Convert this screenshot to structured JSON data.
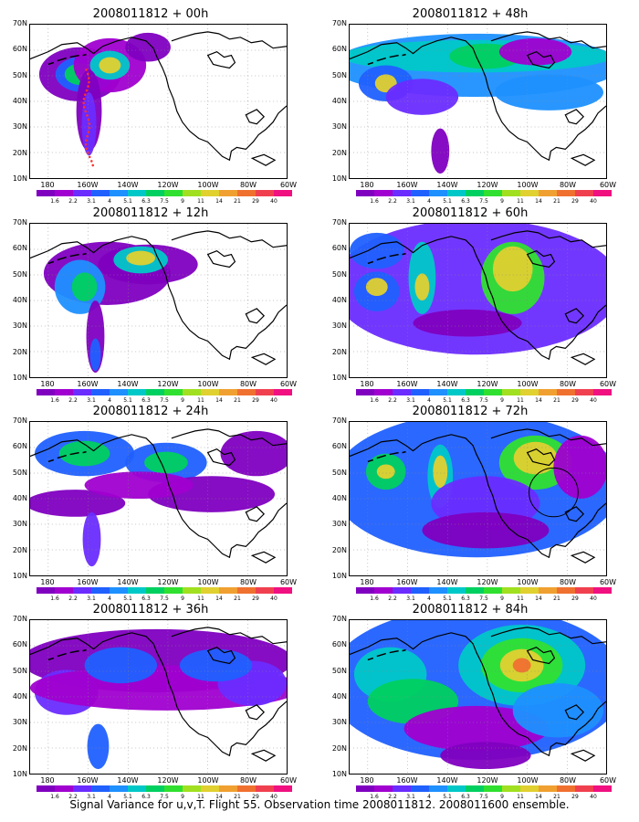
{
  "panels": [
    {
      "title": "2008011812 + 00h",
      "path_overlay": true
    },
    {
      "title": "2008011812 + 12h"
    },
    {
      "title": "2008011812 + 24h"
    },
    {
      "title": "2008011812 + 36h"
    },
    {
      "title": "2008011812 + 48h"
    },
    {
      "title": "2008011812 + 60h"
    },
    {
      "title": "2008011812 + 72h",
      "circle_overlay": true
    },
    {
      "title": "2008011812 + 84h"
    }
  ],
  "axes": {
    "y_labels": [
      "70N",
      "60N",
      "50N",
      "40N",
      "30N",
      "20N",
      "10N"
    ],
    "x_labels": [
      "180",
      "160W",
      "140W",
      "120W",
      "100W",
      "80W",
      "60W"
    ]
  },
  "colorbar": {
    "colors": [
      "#8000c0",
      "#a000d0",
      "#6a2cff",
      "#2060ff",
      "#1e90ff",
      "#00c8c8",
      "#00d060",
      "#30e030",
      "#a0e020",
      "#e0d030",
      "#f0a030",
      "#f07030",
      "#f04050",
      "#f01080"
    ],
    "labels": [
      "1.6",
      "2.2",
      "3.1",
      "4",
      "5.1",
      "6.3",
      "7.5",
      "9",
      "11",
      "14",
      "21",
      "29",
      "40"
    ]
  },
  "footer": "Signal Variance for u,v,T. Flight 55. Observation time 2008011812. 2008011600 ensemble."
}
